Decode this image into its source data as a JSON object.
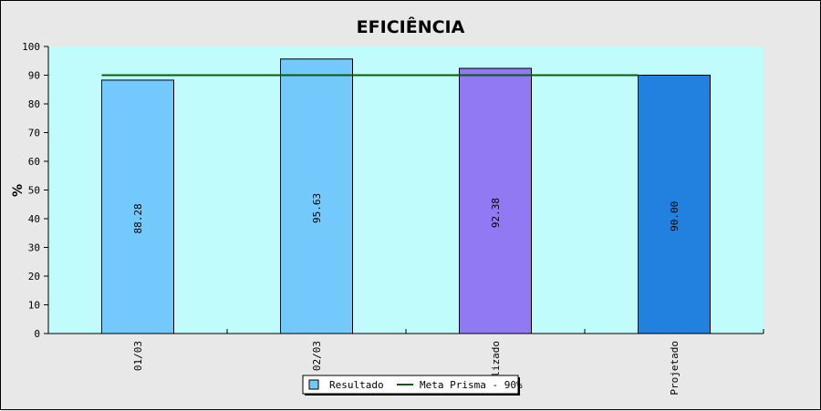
{
  "chart_data": {
    "type": "bar",
    "title": "EFICIÊNCIA",
    "ylabel": "%",
    "xlabel": "",
    "ylim": [
      0,
      100
    ],
    "yticks": [
      0,
      10,
      20,
      30,
      40,
      50,
      60,
      70,
      80,
      90,
      100
    ],
    "categories": [
      "01/03",
      "02/03",
      "Realizado",
      "Projetado"
    ],
    "values": [
      88.28,
      95.63,
      92.38,
      90.0
    ],
    "value_labels": [
      "88.28",
      "95.63",
      "92.38",
      "90.00"
    ],
    "bar_colors": [
      "#73c8fc",
      "#73c8fc",
      "#9079f2",
      "#2281df"
    ],
    "series": [
      {
        "name": "Resultado",
        "type": "bar",
        "values": [
          88.28,
          95.63,
          92.38,
          90.0
        ]
      },
      {
        "name": "Meta Prisma - 90%",
        "type": "line",
        "values": [
          90,
          90,
          90,
          90
        ]
      }
    ],
    "grid": false,
    "legend_position": "bottom-center",
    "colors": {
      "plot_background": "#c0fcfc",
      "page_background": "#e8e8e8",
      "target_line": "#0a5a0a",
      "legend_swatch": "#73c8fc"
    }
  }
}
